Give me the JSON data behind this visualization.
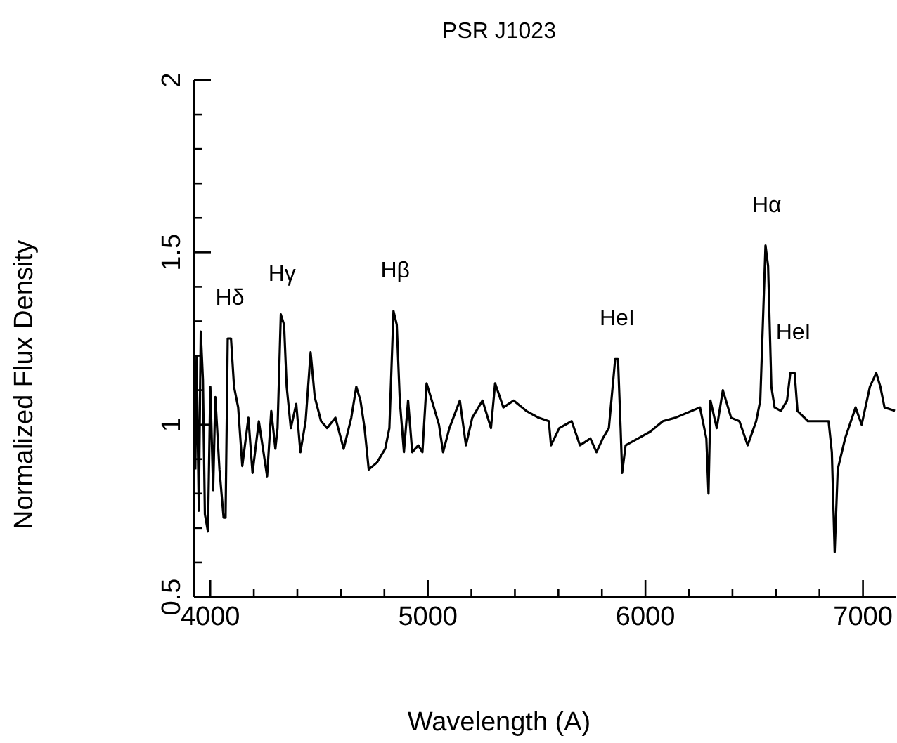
{
  "chart_data": {
    "type": "line",
    "title": "PSR J1023",
    "xlabel": "Wavelength (A)",
    "ylabel": "Normalized Flux Density",
    "x": [
      3931,
      3937,
      3947,
      3956,
      3966,
      3975,
      3989,
      4000,
      4013,
      4023,
      4042,
      4061,
      4070,
      4080,
      4095,
      4109,
      4128,
      4147,
      4175,
      4194,
      4223,
      4261,
      4280,
      4299,
      4309,
      4324,
      4339,
      4351,
      4370,
      4395,
      4414,
      4438,
      4461,
      4480,
      4509,
      4537,
      4575,
      4613,
      4648,
      4671,
      4690,
      4709,
      4728,
      4766,
      4804,
      4823,
      4842,
      4857,
      4871,
      4890,
      4909,
      4928,
      4956,
      4975,
      4994,
      5023,
      5051,
      5070,
      5099,
      5147,
      5175,
      5204,
      5251,
      5290,
      5309,
      5347,
      5394,
      5452,
      5509,
      5556,
      5566,
      5604,
      5661,
      5699,
      5747,
      5775,
      5804,
      5832,
      5861,
      5874,
      5886,
      5893,
      5909,
      5966,
      6023,
      6080,
      6137,
      6213,
      6251,
      6280,
      6290,
      6299,
      6328,
      6356,
      6394,
      6432,
      6470,
      6509,
      6528,
      6552,
      6564,
      6579,
      6594,
      6623,
      6651,
      6666,
      6686,
      6699,
      6747,
      6804,
      6842,
      6857,
      6870,
      6884,
      6918,
      6966,
      6994,
      7032,
      7061,
      7080,
      7099,
      7147
    ],
    "series": [
      {
        "color": "#000000",
        "values": [
          0.87,
          1.2,
          0.75,
          1.27,
          1.13,
          0.74,
          0.69,
          1.11,
          0.81,
          1.08,
          0.87,
          0.73,
          0.73,
          1.25,
          1.25,
          1.11,
          1.05,
          0.88,
          1.02,
          0.86,
          1.01,
          0.85,
          1.04,
          0.93,
          0.99,
          1.32,
          1.29,
          1.11,
          0.99,
          1.06,
          0.92,
          1.01,
          1.21,
          1.08,
          1.01,
          0.99,
          1.02,
          0.93,
          1.02,
          1.11,
          1.07,
          0.99,
          0.87,
          0.89,
          0.93,
          0.99,
          1.33,
          1.29,
          1.07,
          0.92,
          1.07,
          0.92,
          0.94,
          0.92,
          1.12,
          1.06,
          1.0,
          0.92,
          0.99,
          1.07,
          0.94,
          1.02,
          1.07,
          0.99,
          1.12,
          1.05,
          1.07,
          1.04,
          1.02,
          1.01,
          0.94,
          0.99,
          1.01,
          0.94,
          0.96,
          0.92,
          0.96,
          0.99,
          1.19,
          1.19,
          0.99,
          0.86,
          0.94,
          0.96,
          0.98,
          1.01,
          1.02,
          1.04,
          1.05,
          0.96,
          0.8,
          1.07,
          0.99,
          1.1,
          1.02,
          1.01,
          0.94,
          1.01,
          1.07,
          1.52,
          1.46,
          1.11,
          1.05,
          1.04,
          1.07,
          1.15,
          1.15,
          1.04,
          1.01,
          1.01,
          1.01,
          0.92,
          0.63,
          0.87,
          0.96,
          1.05,
          1.0,
          1.11,
          1.15,
          1.11,
          1.05,
          1.04
        ]
      }
    ],
    "xlim": [
      3925,
      7150
    ],
    "xticks": [
      4000,
      {
        "value": 4200,
        "label": null
      },
      {
        "value": 4400,
        "label": null
      },
      {
        "value": 4600,
        "label": null
      },
      {
        "value": 4800,
        "label": null
      },
      5000,
      {
        "value": 5200,
        "label": null
      },
      {
        "value": 5400,
        "label": null
      },
      {
        "value": 5600,
        "label": null
      },
      {
        "value": 5800,
        "label": null
      },
      6000,
      {
        "value": 6200,
        "label": null
      },
      {
        "value": 6400,
        "label": null
      },
      {
        "value": 6600,
        "label": null
      },
      {
        "value": 6800,
        "label": null
      },
      7000
    ],
    "ylim": [
      0.5,
      2
    ],
    "yticks": [
      0.5,
      {
        "value": 0.6,
        "label": null
      },
      {
        "value": 0.7,
        "label": null
      },
      {
        "value": 0.8,
        "label": null
      },
      {
        "value": 0.9,
        "label": null
      },
      1,
      {
        "value": 1.1,
        "label": null
      },
      {
        "value": 1.2,
        "label": null
      },
      {
        "value": 1.3,
        "label": null
      },
      {
        "value": 1.4,
        "label": null
      },
      1.5,
      {
        "value": 1.6,
        "label": null
      },
      {
        "value": 1.7,
        "label": null
      },
      {
        "value": 1.8,
        "label": null
      },
      {
        "value": 1.9,
        "label": null
      },
      2
    ],
    "annotations": [
      {
        "text": "Hδ",
        "x": 4090,
        "y": 1.25
      },
      {
        "text": "Hγ",
        "x": 4330,
        "y": 1.32
      },
      {
        "text": "Hβ",
        "x": 4850,
        "y": 1.33
      },
      {
        "text": "HeI",
        "x": 5870,
        "y": 1.19
      },
      {
        "text": "Hα",
        "x": 6558,
        "y": 1.52
      },
      {
        "text": "HeI",
        "x": 6680,
        "y": 1.15
      }
    ],
    "grid": false,
    "legend": false,
    "marker": "none",
    "line_style": "solid"
  }
}
